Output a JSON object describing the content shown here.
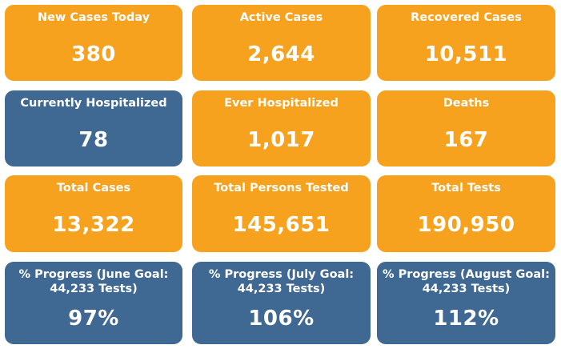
{
  "tiles": {
    "new_cases_today": {
      "label": "New Cases Today",
      "value": "380",
      "color": "#f6a21e"
    },
    "active_cases": {
      "label": "Active Cases",
      "value": "2,644",
      "color": "#f6a21e"
    },
    "recovered_cases": {
      "label": "Recovered Cases",
      "value": "10,511",
      "color": "#f6a21e"
    },
    "currently_hospitalized": {
      "label": "Currently Hospitalized",
      "value": "78",
      "color": "#3f6993"
    },
    "ever_hospitalized": {
      "label": "Ever Hospitalized",
      "value": "1,017",
      "color": "#f6a21e"
    },
    "deaths": {
      "label": "Deaths",
      "value": "167",
      "color": "#f6a21e"
    },
    "total_cases": {
      "label": "Total Cases",
      "value": "13,322",
      "color": "#f6a21e"
    },
    "total_persons_tested": {
      "label": "Total Persons Tested",
      "value": "145,651",
      "color": "#f6a21e"
    },
    "total_tests": {
      "label": "Total Tests",
      "value": "190,950",
      "color": "#f6a21e"
    },
    "progress_june": {
      "label": "% Progress (June Goal: 44,233 Tests)",
      "value": "97%",
      "color": "#3f6993"
    },
    "progress_july": {
      "label": "% Progress (July Goal: 44,233 Tests)",
      "value": "106%",
      "color": "#3f6993"
    },
    "progress_august": {
      "label": "% Progress (August Goal: 44,233 Tests)",
      "value": "112%",
      "color": "#3f6993"
    }
  }
}
